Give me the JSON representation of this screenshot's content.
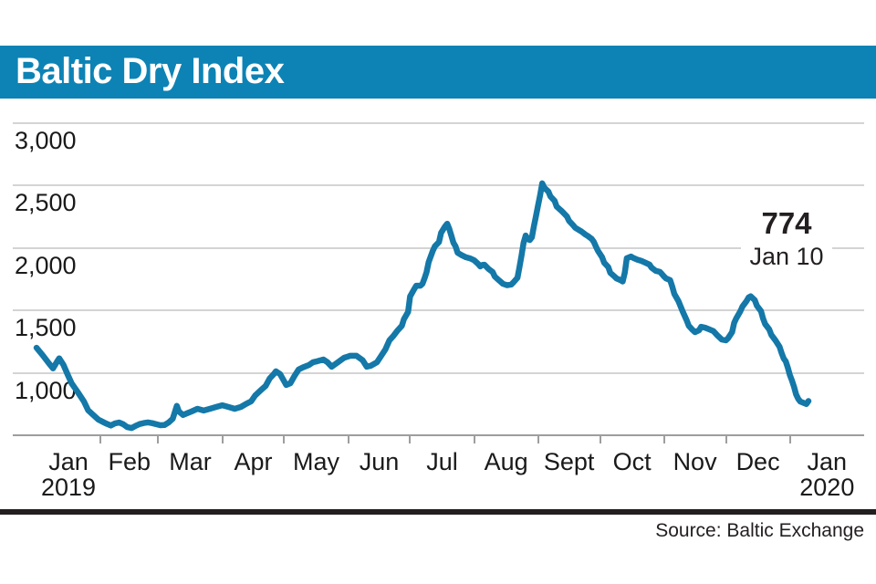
{
  "header": {
    "title": "Baltic Dry Index"
  },
  "annotation": {
    "value": "774",
    "date": "Jan 10"
  },
  "source": {
    "text": "Source: Baltic Exchange"
  },
  "colors": {
    "accent_blue": "#0d83b5",
    "line_blue": "#1478a8",
    "gridline": "#d4d4d4",
    "axis": "#9e9e9e",
    "text_dark": "#1a1a1a",
    "rule_dark": "#231f20"
  },
  "chart_data": {
    "type": "line",
    "title": "Baltic Dry Index",
    "x_axis": {
      "labels": [
        "Jan",
        "Feb",
        "Mar",
        "Apr",
        "May",
        "Jun",
        "Jul",
        "Aug",
        "Sept",
        "Oct",
        "Nov",
        "Dec",
        "Jan"
      ],
      "first_sublabel": "2019",
      "last_sublabel": "2020",
      "month_days_2019": [
        31,
        28,
        31,
        30,
        31,
        30,
        31,
        31,
        30,
        31,
        30,
        31
      ],
      "x_unit": "days since Jan 1, 2019 (ends Jan 10, 2020)"
    },
    "y_axis": {
      "tick_labels": [
        "3,000",
        "2,500",
        "2,000",
        "1,500",
        "1,000"
      ],
      "tick_values": [
        3000,
        2500,
        2000,
        1500,
        1000
      ],
      "min": 500,
      "max": 3100,
      "grid": true
    },
    "legend": "none",
    "last_point": {
      "value": 774,
      "date_label": "Jan 10"
    },
    "series": [
      {
        "name": "Baltic Dry Index",
        "color": "#1478a8",
        "points": [
          [
            0,
            1200
          ],
          [
            3,
            1140
          ],
          [
            6,
            1075
          ],
          [
            8,
            1035
          ],
          [
            10,
            1090
          ],
          [
            11,
            1115
          ],
          [
            13,
            1065
          ],
          [
            15,
            990
          ],
          [
            17,
            915
          ],
          [
            20,
            845
          ],
          [
            23,
            770
          ],
          [
            25,
            700
          ],
          [
            28,
            655
          ],
          [
            30,
            625
          ],
          [
            32,
            608
          ],
          [
            34,
            592
          ],
          [
            36,
            578
          ],
          [
            38,
            595
          ],
          [
            40,
            602
          ],
          [
            42,
            588
          ],
          [
            44,
            565
          ],
          [
            46,
            558
          ],
          [
            48,
            575
          ],
          [
            50,
            590
          ],
          [
            52,
            598
          ],
          [
            54,
            603
          ],
          [
            56,
            597
          ],
          [
            58,
            588
          ],
          [
            60,
            580
          ],
          [
            62,
            582
          ],
          [
            64,
            602
          ],
          [
            66,
            632
          ],
          [
            68,
            735
          ],
          [
            69,
            690
          ],
          [
            71,
            662
          ],
          [
            73,
            676
          ],
          [
            75,
            690
          ],
          [
            78,
            712
          ],
          [
            81,
            698
          ],
          [
            84,
            712
          ],
          [
            87,
            726
          ],
          [
            90,
            740
          ],
          [
            93,
            726
          ],
          [
            96,
            712
          ],
          [
            99,
            726
          ],
          [
            102,
            755
          ],
          [
            104,
            772
          ],
          [
            106,
            820
          ],
          [
            109,
            866
          ],
          [
            111,
            895
          ],
          [
            113,
            955
          ],
          [
            115,
            990
          ],
          [
            116,
            1012
          ],
          [
            118,
            990
          ],
          [
            120,
            932
          ],
          [
            121,
            902
          ],
          [
            123,
            916
          ],
          [
            125,
            975
          ],
          [
            127,
            1026
          ],
          [
            129,
            1042
          ],
          [
            132,
            1062
          ],
          [
            134,
            1085
          ],
          [
            136,
            1092
          ],
          [
            139,
            1106
          ],
          [
            141,
            1084
          ],
          [
            143,
            1048
          ],
          [
            146,
            1084
          ],
          [
            149,
            1120
          ],
          [
            152,
            1136
          ],
          [
            155,
            1136
          ],
          [
            158,
            1100
          ],
          [
            160,
            1048
          ],
          [
            162,
            1056
          ],
          [
            165,
            1085
          ],
          [
            167,
            1136
          ],
          [
            169,
            1186
          ],
          [
            171,
            1260
          ],
          [
            173,
            1296
          ],
          [
            175,
            1340
          ],
          [
            177,
            1376
          ],
          [
            178,
            1428
          ],
          [
            180,
            1486
          ],
          [
            181,
            1610
          ],
          [
            183,
            1670
          ],
          [
            184,
            1696
          ],
          [
            186,
            1696
          ],
          [
            187,
            1712
          ],
          [
            188,
            1756
          ],
          [
            189,
            1806
          ],
          [
            190,
            1886
          ],
          [
            192,
            1975
          ],
          [
            193,
            2012
          ],
          [
            195,
            2046
          ],
          [
            196,
            2120
          ],
          [
            198,
            2172
          ],
          [
            199,
            2192
          ],
          [
            200,
            2150
          ],
          [
            201,
            2095
          ],
          [
            202,
            2040
          ],
          [
            203,
            2012
          ],
          [
            204,
            1960
          ],
          [
            206,
            1940
          ],
          [
            208,
            1924
          ],
          [
            210,
            1915
          ],
          [
            212,
            1900
          ],
          [
            214,
            1870
          ],
          [
            215,
            1850
          ],
          [
            216,
            1862
          ],
          [
            217,
            1864
          ],
          [
            219,
            1830
          ],
          [
            221,
            1806
          ],
          [
            222,
            1770
          ],
          [
            224,
            1740
          ],
          [
            226,
            1712
          ],
          [
            228,
            1700
          ],
          [
            230,
            1706
          ],
          [
            231,
            1722
          ],
          [
            233,
            1760
          ],
          [
            234,
            1845
          ],
          [
            235,
            1940
          ],
          [
            236,
            2040
          ],
          [
            237,
            2098
          ],
          [
            238,
            2069
          ],
          [
            239,
            2062
          ],
          [
            240,
            2084
          ],
          [
            241,
            2172
          ],
          [
            242,
            2255
          ],
          [
            243,
            2340
          ],
          [
            244,
            2420
          ],
          [
            245,
            2515
          ],
          [
            246,
            2480
          ],
          [
            248,
            2449
          ],
          [
            249,
            2410
          ],
          [
            251,
            2375
          ],
          [
            252,
            2330
          ],
          [
            254,
            2300
          ],
          [
            255,
            2285
          ],
          [
            257,
            2250
          ],
          [
            258,
            2215
          ],
          [
            260,
            2180
          ],
          [
            261,
            2160
          ],
          [
            263,
            2140
          ],
          [
            264,
            2130
          ],
          [
            266,
            2105
          ],
          [
            267,
            2095
          ],
          [
            269,
            2070
          ],
          [
            270,
            2048
          ],
          [
            271,
            2010
          ],
          [
            272,
            1975
          ],
          [
            274,
            1925
          ],
          [
            275,
            1880
          ],
          [
            277,
            1845
          ],
          [
            278,
            1800
          ],
          [
            280,
            1770
          ],
          [
            281,
            1755
          ],
          [
            283,
            1740
          ],
          [
            284,
            1730
          ],
          [
            285,
            1800
          ],
          [
            286,
            1916
          ],
          [
            288,
            1930
          ],
          [
            289,
            1920
          ],
          [
            291,
            1905
          ],
          [
            293,
            1895
          ],
          [
            295,
            1880
          ],
          [
            297,
            1865
          ],
          [
            298,
            1840
          ],
          [
            300,
            1815
          ],
          [
            302,
            1807
          ],
          [
            303,
            1790
          ],
          [
            304,
            1770
          ],
          [
            305,
            1755
          ],
          [
            307,
            1741
          ],
          [
            308,
            1690
          ],
          [
            309,
            1631
          ],
          [
            311,
            1573
          ],
          [
            313,
            1493
          ],
          [
            315,
            1420
          ],
          [
            316,
            1376
          ],
          [
            318,
            1340
          ],
          [
            319,
            1325
          ],
          [
            321,
            1340
          ],
          [
            322,
            1368
          ],
          [
            324,
            1360
          ],
          [
            326,
            1347
          ],
          [
            328,
            1333
          ],
          [
            330,
            1296
          ],
          [
            332,
            1266
          ],
          [
            334,
            1259
          ],
          [
            335,
            1275
          ],
          [
            337,
            1325
          ],
          [
            338,
            1400
          ],
          [
            339,
            1434
          ],
          [
            341,
            1493
          ],
          [
            342,
            1529
          ],
          [
            344,
            1573
          ],
          [
            345,
            1602
          ],
          [
            346,
            1612
          ],
          [
            348,
            1580
          ],
          [
            349,
            1537
          ],
          [
            351,
            1493
          ],
          [
            352,
            1434
          ],
          [
            353,
            1390
          ],
          [
            355,
            1347
          ],
          [
            356,
            1303
          ],
          [
            358,
            1259
          ],
          [
            360,
            1208
          ],
          [
            361,
            1157
          ],
          [
            362,
            1113
          ],
          [
            363,
            1091
          ],
          [
            364,
            1040
          ],
          [
            365,
            982
          ],
          [
            366,
            938
          ],
          [
            367,
            887
          ],
          [
            368,
            828
          ],
          [
            369,
            792
          ],
          [
            370,
            770
          ],
          [
            372,
            756
          ],
          [
            373,
            750
          ],
          [
            374,
            774
          ]
        ]
      }
    ]
  }
}
